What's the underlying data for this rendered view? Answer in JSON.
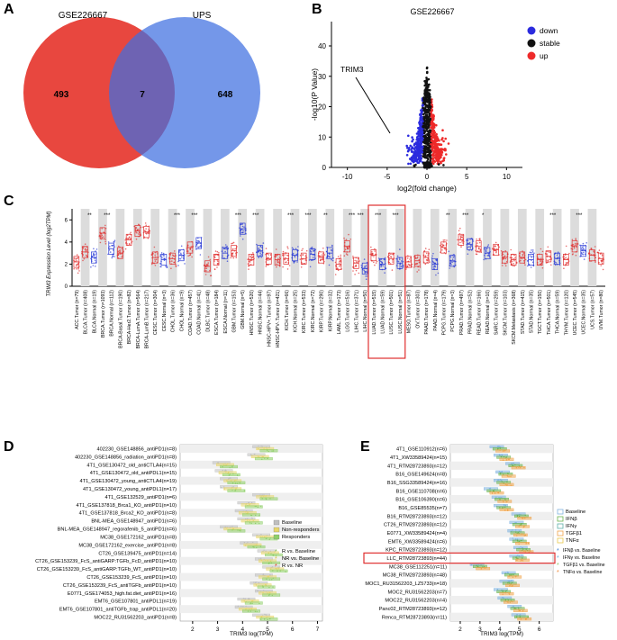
{
  "panels": {
    "a": "A",
    "b": "B",
    "c": "C",
    "d": "D",
    "e": "E"
  },
  "panel_a": {
    "set1": "GSE226667",
    "set2": "UPS",
    "only_set1": "493",
    "overlap": "7",
    "only_set2": "648",
    "colors": {
      "set1": "#e8473f",
      "set2": "#3f6fe0"
    }
  },
  "panel_b": {
    "title": "GSE226667",
    "ylabel": "-log10(P Value)",
    "xlabel": "log2(fold change)",
    "xticks": [
      "-10",
      "-5",
      "0",
      "5",
      "10"
    ],
    "yticks": [
      "0",
      "10",
      "20",
      "30",
      "40"
    ],
    "legend": [
      {
        "label": "down",
        "color": "#2b2bde"
      },
      {
        "label": "stable",
        "color": "#111111"
      },
      {
        "label": "up",
        "color": "#ee2a2a"
      }
    ],
    "annotation": "TRIM3",
    "chart_data": {
      "type": "scatter",
      "title": "GSE226667",
      "xlabel": "log2(fold change)",
      "ylabel": "-log10(P Value)",
      "xlim": [
        -10,
        10
      ],
      "ylim": [
        0,
        48
      ],
      "series": [
        {
          "name": "down",
          "color": "#2b2bde"
        },
        {
          "name": "stable",
          "color": "#111111"
        },
        {
          "name": "up",
          "color": "#ee2a2a"
        }
      ],
      "highlight": {
        "label": "TRIM3",
        "x": -2.0,
        "y": 3.5
      }
    }
  },
  "panel_c": {
    "ylabel": "TRIM3 Expression Level (log2TPM)",
    "yticks": [
      "0",
      "2",
      "4",
      "6"
    ],
    "chart_data": {
      "type": "box",
      "ylabel": "TRIM3 Expression Level (log2TPM)",
      "ylim": [
        0,
        7
      ],
      "categories": [
        "ACC.Tumor (n=79)",
        "BLCA.Tumor (n=408)",
        "BLCA.Normal (n=19)",
        "BRCA.Tumor (n=1093)",
        "BRCA.Normal (n=112)",
        "BRCA-Basal.Tumor (n=190)",
        "BRCA-Her2.Tumor (n=82)",
        "BRCA-LumA.Tumor (n=564)",
        "BRCA-LumB.Tumor (n=217)",
        "CESC.Tumor (n=304)",
        "CESC.Normal (n=3)",
        "CHOL.Tumor (n=36)",
        "CHOL.Normal (n=9)",
        "COAD.Tumor (n=457)",
        "COAD.Normal (n=41)",
        "DLBC.Tumor (n=48)",
        "ESCA.Tumor (n=184)",
        "ESCA.Normal (n=11)",
        "GBM.Tumor (n=153)",
        "GBM.Normal (n=5)",
        "HNSC.Tumor (n=520)",
        "HNSC.Normal (n=44)",
        "HNSC-HPV+.Tumor (n=97)",
        "HNSC-HPV-.Tumor (n=421)",
        "KICH.Tumor (n=66)",
        "KICH.Normal (n=25)",
        "KIRC.Tumor (n=533)",
        "KIRC.Normal (n=72)",
        "KIRP.Tumor (n=290)",
        "KIRP.Normal (n=32)",
        "LAML.Tumor (n=173)",
        "LGG.Tumor (n=516)",
        "LIHC.Tumor (n=371)",
        "LIHC.Normal (n=50)",
        "LUAD.Tumor (n=515)",
        "LUAD.Normal (n=59)",
        "LUSC.Tumor (n=501)",
        "LUSC.Normal (n=51)",
        "MESO.Tumor (n=87)",
        "OV.Tumor (n=303)",
        "PAAD.Tumor (n=178)",
        "PAAD.Normal (n=4)",
        "PCPG.Tumor (n=179)",
        "PCPG.Normal (n=3)",
        "PRAD.Tumor (n=497)",
        "PRAD.Normal (n=52)",
        "READ.Tumor (n=166)",
        "READ.Normal (n=10)",
        "SARC.Tumor (n=259)",
        "SKCM.Tumor (n=103)",
        "SKCM.Metastasis (n=368)",
        "STAD.Tumor (n=415)",
        "STAD.Normal (n=35)",
        "TGCT.Tumor (n=150)",
        "THCA.Tumor (n=501)",
        "THCA.Normal (n=59)",
        "THYM.Tumor (n=120)",
        "UCEC.Tumor (n=545)",
        "UCEC.Normal (n=35)",
        "UCS.Tumor (n=57)",
        "UVM.Tumor (n=80)"
      ],
      "medians": [
        2.2,
        3.1,
        2.6,
        4.8,
        3.4,
        3.0,
        4.2,
        5.0,
        4.9,
        2.6,
        2.4,
        2.5,
        2.8,
        3.5,
        3.9,
        1.8,
        2.4,
        3.0,
        3.2,
        5.2,
        2.4,
        3.2,
        2.5,
        2.4,
        2.5,
        2.8,
        2.5,
        2.9,
        2.6,
        3.0,
        2.0,
        3.6,
        2.1,
        1.6,
        2.8,
        2.0,
        2.5,
        2.1,
        2.2,
        2.3,
        2.6,
        2.0,
        3.5,
        2.3,
        4.2,
        3.8,
        3.6,
        3.0,
        3.3,
        2.6,
        2.4,
        2.6,
        2.4,
        2.4,
        2.7,
        2.5,
        2.4,
        3.6,
        3.2,
        2.8,
        2.5
      ],
      "significance": [
        "",
        "**",
        "",
        "***",
        "",
        "",
        "",
        "",
        "",
        "",
        "",
        "***",
        "",
        "***",
        "",
        "",
        "",
        "",
        "***",
        "",
        "***",
        "",
        "",
        "",
        "***",
        "",
        "***",
        "",
        "**",
        "",
        "",
        "***",
        "***",
        "",
        "***",
        "",
        "***",
        "",
        "",
        "",
        "",
        "",
        "**",
        "",
        "***",
        "",
        "*",
        "",
        "",
        "",
        "",
        "",
        "",
        "",
        "***",
        "",
        "",
        "***",
        "",
        "",
        ""
      ],
      "highlighted_group": [
        "LUAD.Tumor (n=515)",
        "LUAD.Normal (n=59)",
        "LUSC.Tumor (n=501)",
        "LUSC.Normal (n=51)"
      ]
    }
  },
  "panel_d": {
    "xlabel": "TRIM3 log(TPM)",
    "xticks": [
      "2",
      "3",
      "4",
      "5",
      "6",
      "7"
    ],
    "legend_fill": [
      {
        "label": "Baseline",
        "color": "#bfbfbf"
      },
      {
        "label": "Non-responders",
        "color": "#e8d66b"
      },
      {
        "label": "Responders",
        "color": "#8fcf6a"
      }
    ],
    "legend_star": [
      {
        "label": "R vs. Baseline",
        "color": "#7ab648"
      },
      {
        "label": "NR vs. Baseline",
        "color": "#d8c040"
      },
      {
        "label": "R vs. NR",
        "color": "#e03a2a"
      }
    ],
    "chart_data": {
      "type": "box",
      "orientation": "horizontal",
      "xlabel": "TRIM3 log(TPM)",
      "xlim": [
        1.5,
        7.2
      ],
      "categories": [
        "402230_GSE148856_antiPD1(n=8)",
        "402230_GSE148856_radiation_antiPD1(n=8)",
        "4T1_GSE130472_old_antiCTLA4(n=15)",
        "4T1_GSE130472_old_antiPDL1(n=15)",
        "4T1_GSE130472_young_antiCTLA4(n=19)",
        "4T1_GSE130472_young_antiPDL1(n=17)",
        "4T1_GSE132529_antiPD1(n=6)",
        "4T1_GSE137818_Brca1_KO_antiPD1(n=10)",
        "4T1_GSE137818_Brca2_KO_antiPD1(n=8)",
        "BNL-MEA_GSE148947_antiPD1(n=6)",
        "BNL-MEA_GSE148947_regorafenib_5_antiPD1(n=6)",
        "MC38_GSE172162_antiPD1(n=8)",
        "MC38_GSE172162_exercise_antiPD1(n=8)",
        "CT26_GSE139475_antiPD1(n=14)",
        "CT26_GSE153239_FcS_antiGARP:TGFb_FcD_antiPD1(n=10)",
        "CT26_GSE153239_FcS_antiGARP:TGFb_WT_antiPD1(n=10)",
        "CT26_GSE153239_FcS_antiPD1(n=10)",
        "CT26_GSE153239_FcS_antiTGFb_antiPD1(n=10)",
        "E0771_GSE174053_high.fat.diet_antiPD1(n=16)",
        "EMT6_GSE107801_antiPDL1(n=19)",
        "EMT6_GSE107801_antiTGFb_trap_antiPDL1(n=20)",
        "MOC22_RU31562203_antiPD1(n=8)"
      ],
      "medians": [
        4.9,
        4.7,
        3.3,
        3.4,
        3.6,
        3.6,
        4.9,
        4.3,
        4.2,
        4.3,
        3.6,
        4.9,
        4.4,
        5.1,
        5.0,
        5.3,
        5.0,
        4.8,
        5.0,
        4.3,
        4.2,
        4.9
      ]
    }
  },
  "panel_e": {
    "xlabel": "TRIM3 log(TPM)",
    "xticks": [
      "2",
      "3",
      "4",
      "5",
      "6"
    ],
    "legend_fill": [
      {
        "label": "Baseline",
        "color": "#7fb3e0"
      },
      {
        "label": "IFNβ",
        "color": "#6ab34e"
      },
      {
        "label": "IFNγ",
        "color": "#5fb0a8"
      },
      {
        "label": "TGFβ1",
        "color": "#f0a44a"
      },
      {
        "label": "TNFα",
        "color": "#e8c94c"
      }
    ],
    "legend_star": [
      {
        "label": "IFNβ vs. Baseline",
        "color": "#3a7fd0"
      },
      {
        "label": "IFNγ vs. Baseline",
        "color": "#6cb0d8"
      },
      {
        "label": "TGFβ1 vs. Baseline",
        "color": "#8fc86a"
      },
      {
        "label": "TNFα vs. Baseline",
        "color": "#f08a3a"
      }
    ],
    "chart_data": {
      "type": "box",
      "orientation": "horizontal",
      "xlabel": "TRIM3 log(TPM)",
      "xlim": [
        1.5,
        6.7
      ],
      "categories": [
        "4T1_GSE110912(n=6)",
        "4T1_XW33589424(n=15)",
        "4T1_RTM28723893(n=12)",
        "B16_GSE149624(n=8)",
        "B16_SSG33589424(n=16)",
        "B16_GSE110708(n=6)",
        "B16_GSE106390(n=6)",
        "B16_GSE85535(n=7)",
        "B16_RTM28723893(n=12)",
        "CT26_RTM28723893(n=12)",
        "E0771_XW33589424(n=4)",
        "EMT6_XW33589424(n=6)",
        "KPC_RTM28723893(n=12)",
        "LLC_RTM28723893(n=44)",
        "MC38_GSE112251(n=11)",
        "MC38_RTM28723893(n=48)",
        "MOC1_RU31562203_LZ5733(n=18)",
        "MOC2_RU31562203(n=7)",
        "MOC22_RU31562203(n=4)",
        "Panc02_RTM28723893(n=12)",
        "Renca_RTM28723893(n=11)"
      ],
      "medians": [
        4.0,
        4.2,
        4.8,
        4.3,
        4.2,
        3.7,
        4.1,
        4.2,
        5.1,
        5.0,
        4.9,
        5.0,
        5.2,
        5.0,
        3.0,
        4.6,
        4.5,
        4.2,
        4.4,
        4.9,
        5.1
      ],
      "highlighted_row": "LLC_RTM28723893(n=44)"
    }
  }
}
